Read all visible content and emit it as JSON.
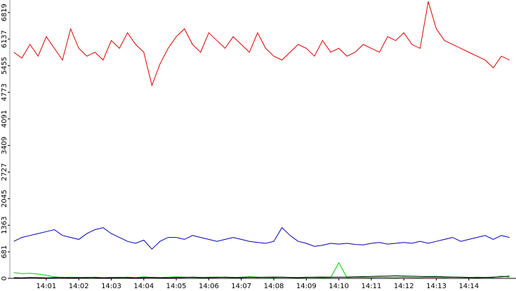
{
  "chart_data": {
    "type": "line",
    "x": [
      0,
      0.25,
      0.5,
      0.75,
      1,
      1.25,
      1.5,
      1.75,
      2,
      2.25,
      2.5,
      2.75,
      3,
      3.25,
      3.5,
      3.75,
      4,
      4.25,
      4.5,
      4.75,
      5,
      5.25,
      5.5,
      5.75,
      6,
      6.25,
      6.5,
      6.75,
      7,
      7.25,
      7.5,
      7.75,
      8,
      8.25,
      8.5,
      8.75,
      9,
      9.25,
      9.5,
      9.75,
      10,
      10.25,
      10.5,
      10.75,
      11,
      11.25,
      11.5,
      11.75,
      12,
      12.25,
      12.5,
      12.75,
      13,
      13.25,
      13.5,
      13.75,
      14,
      14.25,
      14.5,
      14.75,
      15,
      15.25
    ],
    "series": [
      {
        "color": "#e00000",
        "values": [
          5800,
          5650,
          6000,
          5700,
          6200,
          5900,
          5600,
          6400,
          5900,
          5700,
          5800,
          5600,
          6100,
          5900,
          6300,
          6000,
          5800,
          4950,
          5500,
          5900,
          6200,
          6400,
          6000,
          5800,
          6300,
          6100,
          5900,
          6200,
          6000,
          5800,
          6300,
          5900,
          5700,
          5600,
          5800,
          6000,
          5900,
          5700,
          6100,
          5800,
          5900,
          5700,
          5800,
          6000,
          5900,
          5800,
          6200,
          6100,
          6300,
          6000,
          5900,
          7100,
          6400,
          6100,
          6000,
          5900,
          5800,
          5700,
          5600,
          5400,
          5700,
          5600
        ]
      },
      {
        "color": "#0000b0",
        "values": [
          950,
          1050,
          1100,
          1150,
          1200,
          1250,
          1100,
          1050,
          1000,
          1150,
          1250,
          1300,
          1150,
          1050,
          950,
          900,
          980,
          750,
          950,
          1050,
          1050,
          1000,
          1100,
          1050,
          1000,
          950,
          1000,
          1050,
          1000,
          950,
          920,
          900,
          950,
          1300,
          1100,
          950,
          900,
          820,
          850,
          900,
          880,
          900,
          870,
          860,
          900,
          920,
          880,
          900,
          920,
          900,
          950,
          900,
          950,
          1000,
          1050,
          950,
          1000,
          1050,
          1100,
          1000,
          1100,
          1050
        ]
      },
      {
        "color": "#00cc00",
        "values": [
          150,
          120,
          130,
          110,
          80,
          40,
          20,
          30,
          25,
          20,
          30,
          20,
          25,
          20,
          30,
          20,
          40,
          25,
          20,
          30,
          40,
          30,
          25,
          20,
          30,
          35,
          25,
          20,
          30,
          40,
          30,
          25,
          20,
          30,
          25,
          20,
          30,
          25,
          20,
          25,
          400,
          20,
          30,
          25,
          20,
          30,
          25,
          20,
          30,
          25,
          20,
          30,
          25,
          20,
          30,
          25,
          20,
          30,
          25,
          20,
          60,
          30
        ]
      },
      {
        "color": "#000000",
        "values": [
          20,
          15,
          25,
          20,
          15,
          20,
          25,
          15,
          20,
          25,
          20,
          15,
          20,
          25,
          20,
          15,
          20,
          25,
          20,
          15,
          20,
          25,
          30,
          25,
          20,
          25,
          30,
          25,
          20,
          30,
          25,
          30,
          35,
          30,
          25,
          20,
          25,
          30,
          35,
          30,
          30,
          35,
          40,
          45,
          50,
          55,
          60,
          65,
          60,
          55,
          50,
          45,
          50,
          40,
          35,
          30,
          25,
          20,
          25,
          30,
          40,
          60
        ]
      }
    ],
    "xlim": [
      -0.12,
      15.45
    ],
    "xticks": [
      {
        "value": 1,
        "label": "14:01"
      },
      {
        "value": 2,
        "label": "14:02"
      },
      {
        "value": 3,
        "label": "14:03"
      },
      {
        "value": 4,
        "label": "14:04"
      },
      {
        "value": 5,
        "label": "14:05"
      },
      {
        "value": 6,
        "label": "14:06"
      },
      {
        "value": 7,
        "label": "14:07"
      },
      {
        "value": 8,
        "label": "14:08"
      },
      {
        "value": 9,
        "label": "14:09"
      },
      {
        "value": 10,
        "label": "14:10"
      },
      {
        "value": 11,
        "label": "14:11"
      },
      {
        "value": 12,
        "label": "14:12"
      },
      {
        "value": 13,
        "label": "14:13"
      },
      {
        "value": 14,
        "label": "14:14"
      }
    ],
    "ylim": [
      0,
      7140
    ],
    "yticks": [
      0,
      681,
      1363,
      2045,
      2727,
      3409,
      4091,
      4773,
      5455,
      6137,
      6819
    ]
  }
}
